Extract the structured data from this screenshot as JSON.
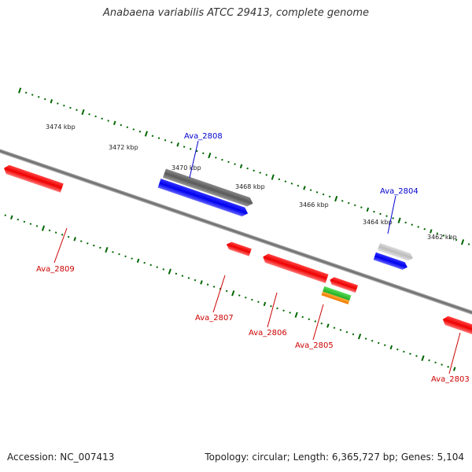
{
  "title": "Anabaena variabilis ATCC 29413, complete genome",
  "footer": {
    "accession": "Accession: NC_007413",
    "info": "Topology: circular; Length: 6,365,727 bp; Genes: 5,104"
  },
  "scale_labels": [
    "3474 kbp",
    "3472 kbp",
    "3470 kbp",
    "3468 kbp",
    "3466 kbp",
    "3464 kbp",
    "3462 kbp"
  ],
  "gene_labels": {
    "ava_2808": "Ava_2808",
    "ava_2804": "Ava_2804",
    "ava_2809": "Ava_2809",
    "ava_2807": "Ava_2807",
    "ava_2806": "Ava_2806",
    "ava_2805": "Ava_2805",
    "ava_2803": "Ava_2803"
  },
  "colors": {
    "forward_label": "#0000cc",
    "reverse_label": "#cc0000",
    "tick": "#006600",
    "backbone": "#808080",
    "red": "#ee0000",
    "blue": "#0000ee",
    "dark_gray": "#666666",
    "light_gray": "#c4c4c4",
    "green": "#22bb22",
    "orange": "#ff8800"
  }
}
